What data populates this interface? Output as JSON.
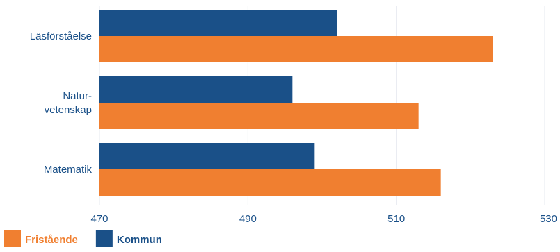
{
  "chart_data": {
    "type": "bar",
    "orientation": "horizontal",
    "categories": [
      [
        "Läsförståelse"
      ],
      [
        "Natur-",
        "vetenskap"
      ],
      [
        "Matematik"
      ]
    ],
    "series": [
      {
        "name": "Kommun",
        "color": "#1a5088",
        "values": [
          502,
          496,
          499
        ]
      },
      {
        "name": "Fristående",
        "color": "#f07f30",
        "values": [
          523,
          513,
          516
        ]
      }
    ],
    "xlim": [
      470,
      530
    ],
    "xticks": [
      "470",
      "490",
      "510",
      "530"
    ],
    "grid": true,
    "legend": {
      "placement": "bottom-left",
      "order": [
        "Fristående",
        "Kommun"
      ]
    }
  }
}
